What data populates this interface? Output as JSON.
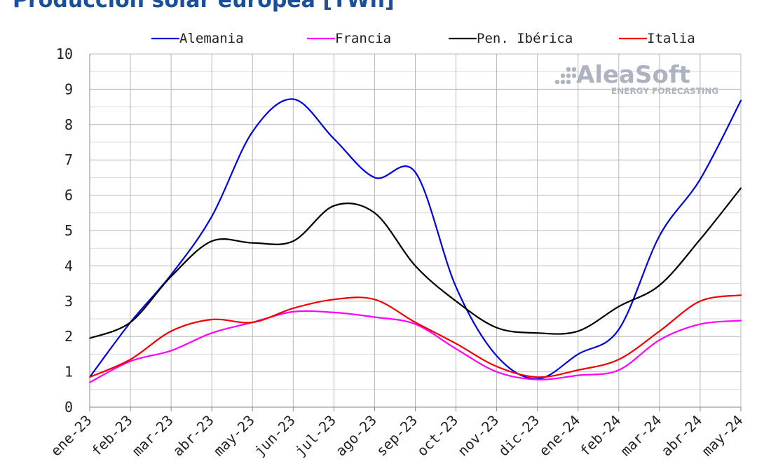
{
  "chart_data": {
    "type": "line",
    "title": "Producción solar europea [TWh]",
    "categories": [
      "ene-23",
      "feb-23",
      "mar-23",
      "abr-23",
      "may-23",
      "jun-23",
      "jul-23",
      "ago-23",
      "sep-23",
      "oct-23",
      "nov-23",
      "dic-23",
      "ene-24",
      "feb-24",
      "mar-24",
      "abr-24",
      "may-24"
    ],
    "series": [
      {
        "name": "Alemania",
        "color": "#0000dd",
        "values": [
          0.85,
          2.4,
          3.75,
          5.4,
          7.8,
          8.72,
          7.6,
          6.5,
          6.65,
          3.4,
          1.45,
          0.8,
          1.5,
          2.2,
          4.85,
          6.45,
          8.68
        ]
      },
      {
        "name": "Francia",
        "color": "#ff00ff",
        "values": [
          0.7,
          1.3,
          1.6,
          2.1,
          2.4,
          2.7,
          2.68,
          2.55,
          2.35,
          1.65,
          1.0,
          0.78,
          0.9,
          1.05,
          1.9,
          2.35,
          2.45
        ]
      },
      {
        "name": "Pen. Ibérica",
        "color": "#000000",
        "values": [
          1.95,
          2.4,
          3.7,
          4.7,
          4.65,
          4.7,
          5.7,
          5.5,
          4.0,
          3.0,
          2.25,
          2.1,
          2.15,
          2.85,
          3.45,
          4.75,
          6.2
        ]
      },
      {
        "name": "Italia",
        "color": "#ee0000",
        "values": [
          0.85,
          1.35,
          2.15,
          2.48,
          2.4,
          2.8,
          3.05,
          3.05,
          2.4,
          1.8,
          1.15,
          0.85,
          1.05,
          1.35,
          2.15,
          3.0,
          3.17
        ]
      }
    ],
    "ylim": [
      0,
      10
    ],
    "yticks": [
      "0",
      "1",
      "2",
      "3",
      "4",
      "5",
      "6",
      "7",
      "8",
      "9",
      "10"
    ],
    "grid": true,
    "legend_position": "top"
  },
  "watermark": {
    "name": "AleaSoft",
    "tagline": "ENERGY FORECASTING"
  }
}
